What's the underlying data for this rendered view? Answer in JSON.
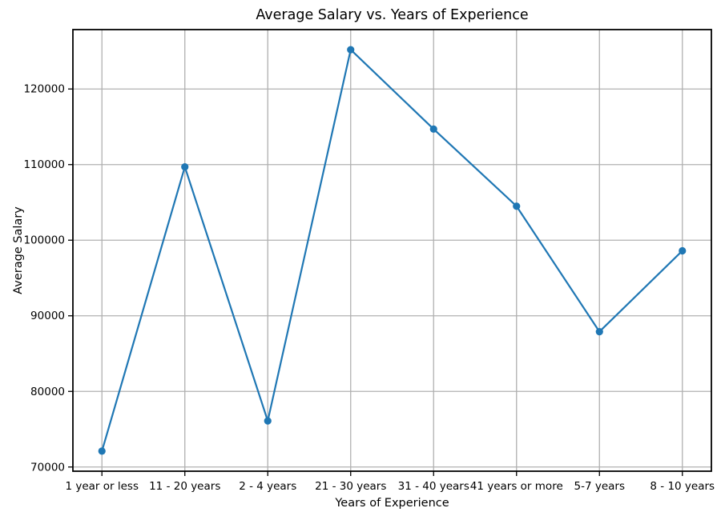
{
  "chart_data": {
    "type": "line",
    "title": "Average Salary vs. Years of Experience",
    "xlabel": "Years of Experience",
    "ylabel": "Average Salary",
    "categories": [
      "1 year or less",
      "11 - 20 years",
      "2 - 4 years",
      "21 - 30 years",
      "31 - 40 years",
      "41 years or more",
      "5-7 years",
      "8 - 10 years"
    ],
    "values": [
      72100,
      109700,
      76100,
      125200,
      114700,
      104500,
      87900,
      98600
    ],
    "yticks": [
      70000,
      80000,
      90000,
      100000,
      110000,
      120000
    ],
    "ylim": [
      69445,
      127855
    ],
    "grid": "on",
    "legend": "none",
    "marker": "circle",
    "line_color": "#1f77b4",
    "marker_color": "#1f77b4",
    "grid_color": "#b0b0b0",
    "axis_color": "#000000",
    "text_color": "#000000",
    "background_color": "#ffffff"
  }
}
